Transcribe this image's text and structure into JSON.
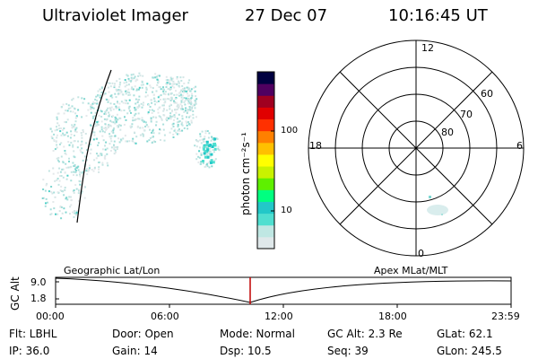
{
  "header": {
    "title": "Ultraviolet Imager",
    "date": "27 Dec 07",
    "time": "10:16:45 UT"
  },
  "colorbar": {
    "label": "photon cm⁻²s⁻¹",
    "ticks": [
      "100",
      "10"
    ],
    "colors": [
      "#dfe8ea",
      "#bfe7e3",
      "#4fdfd0",
      "#22c8c8",
      "#00ff80",
      "#5ef000",
      "#c8f200",
      "#ffff00",
      "#ffc000",
      "#ff8000",
      "#ff3000",
      "#e00000",
      "#a00020",
      "#500060",
      "#000040"
    ]
  },
  "polar": {
    "lat_labels": [
      "60",
      "70",
      "80"
    ],
    "mlt_labels": {
      "top": "12",
      "left": "18",
      "right": "6",
      "bottom": "0"
    }
  },
  "timeline": {
    "ylabel": "GC Alt",
    "yticks": [
      "9.0",
      "1.8"
    ],
    "left_label": "Geographic Lat/Lon",
    "right_label": "Apex MLat/MLT",
    "xticks": [
      "00:00",
      "06:00",
      "12:00",
      "18:00",
      "23:59"
    ],
    "marker_color": "#c00000"
  },
  "info": {
    "flt": "Flt: LBHL",
    "door": "Door: Open",
    "mode": "Mode: Normal",
    "gcalt": "GC Alt: 2.3 Re",
    "glat": "GLat:  62.1",
    "ip": "IP: 36.0",
    "gain": "Gain: 14",
    "dsp": "Dsp:    10.5",
    "seq": "Seq: 39",
    "glon": "GLon: 245.5"
  }
}
